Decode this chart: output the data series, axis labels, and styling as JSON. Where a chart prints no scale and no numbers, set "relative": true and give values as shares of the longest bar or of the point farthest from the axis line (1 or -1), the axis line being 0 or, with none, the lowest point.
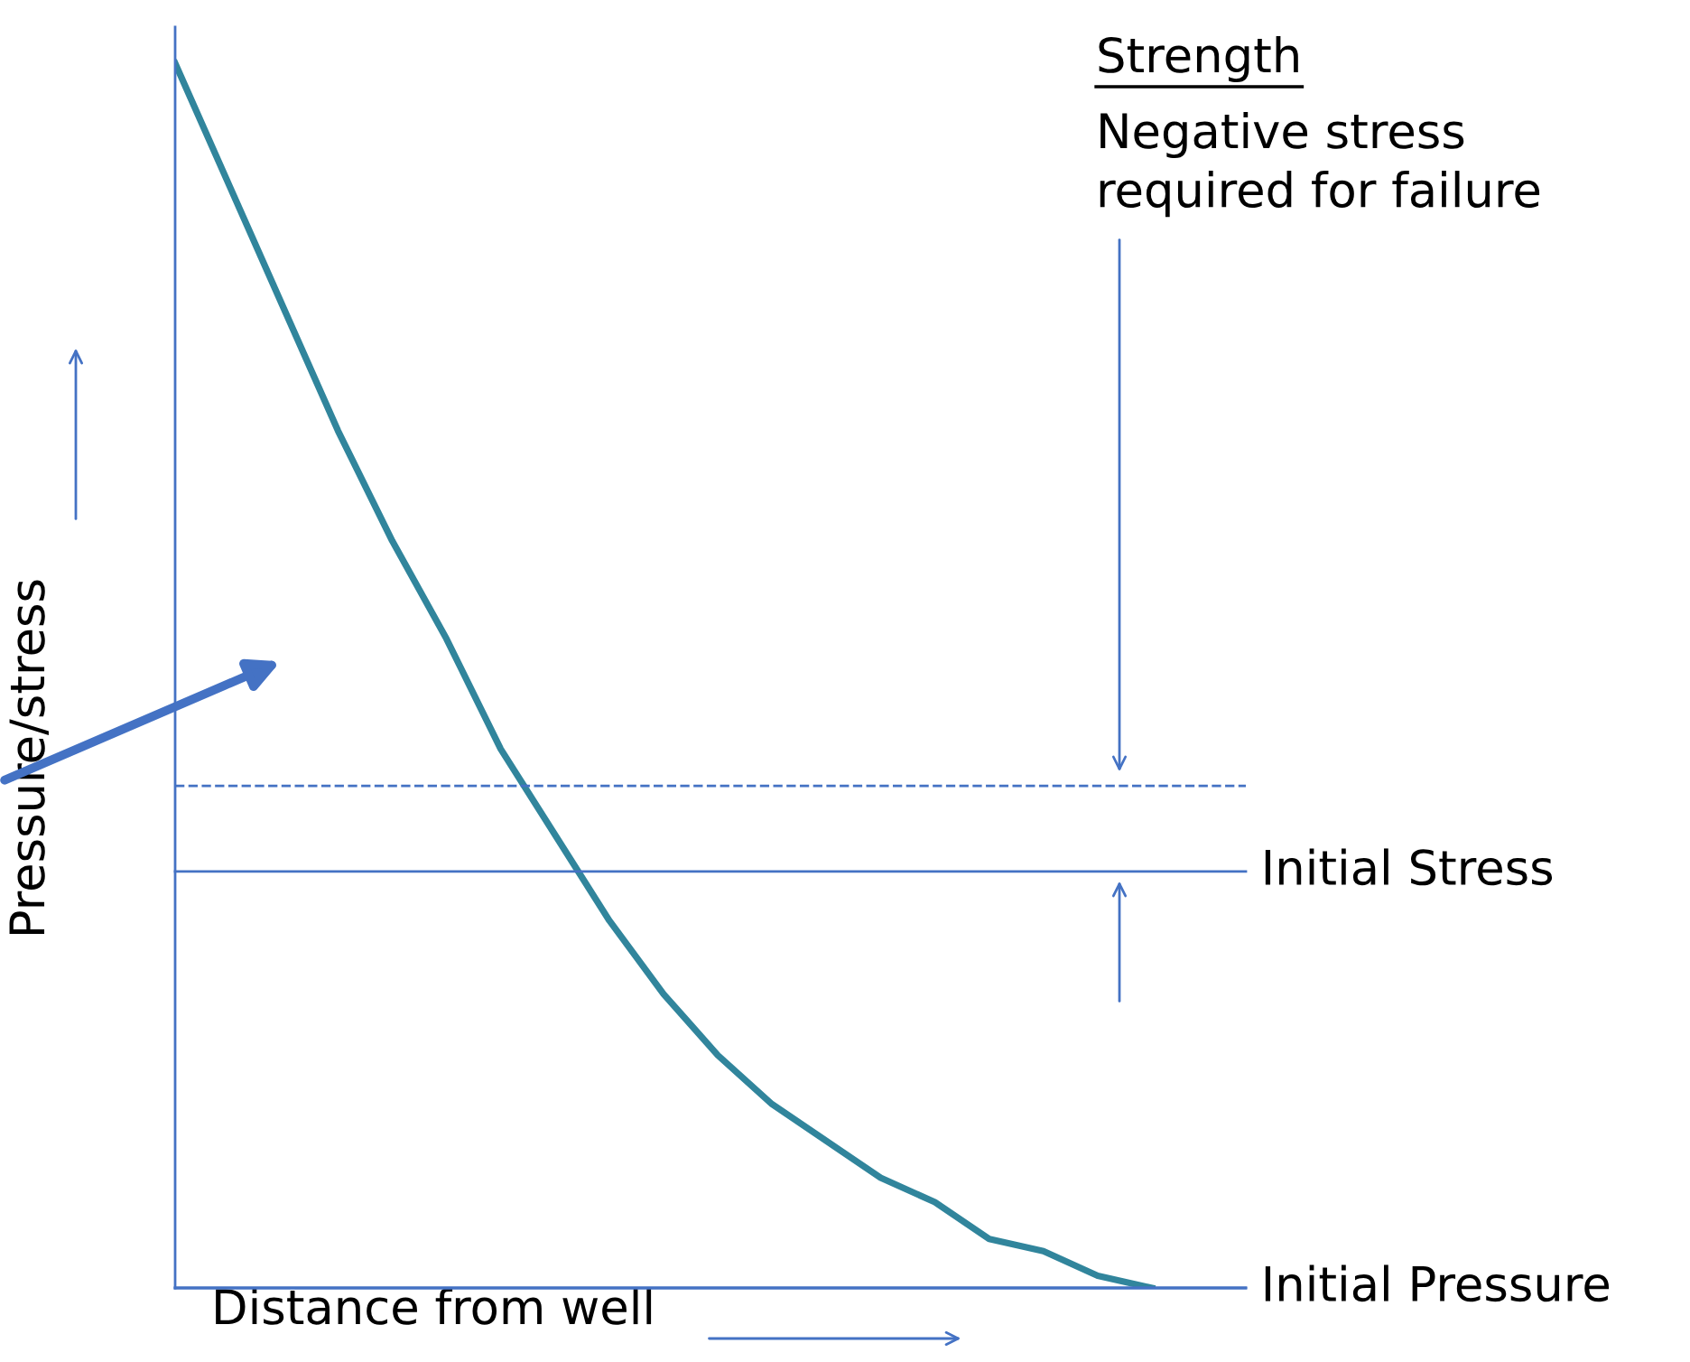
{
  "chart_data": {
    "type": "line",
    "relative": true,
    "xlabel": "Distance from well",
    "ylabel": "Pressure/stress",
    "categories": [
      null,
      null,
      null,
      null,
      null,
      null,
      null,
      null,
      null,
      null,
      null,
      null,
      null,
      null,
      null,
      null,
      null,
      null,
      null
    ],
    "series": [
      {
        "color": "#31859c",
        "values": [
          1.0,
          0.9,
          0.8,
          0.7,
          0.61,
          0.53,
          0.44,
          0.37,
          0.3,
          0.24,
          0.19,
          0.15,
          0.12,
          0.09,
          0.07,
          0.04,
          0.03,
          0.01,
          0.0
        ]
      }
    ],
    "ref_lines": [
      {
        "axis": "y",
        "value": 0.41,
        "label": null,
        "color": "#4472c4",
        "line_style": "dashed"
      },
      {
        "axis": "y",
        "value": 0.34,
        "label": "Initial Stress",
        "color": "#4472c4",
        "line_style": "solid"
      },
      {
        "axis": "y",
        "value": 0.0,
        "label": "Initial Pressure",
        "color": "#4472c4",
        "line_style": "solid"
      }
    ],
    "annotations": [
      "Strength",
      "Negative stress\nrequired for failure"
    ],
    "marker": "none",
    "line_style": "solid",
    "grid": false
  }
}
